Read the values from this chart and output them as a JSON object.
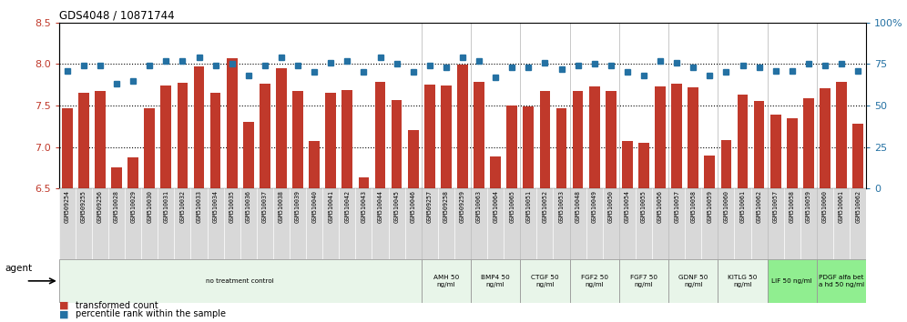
{
  "title": "GDS4048 / 10871744",
  "bar_values": [
    7.47,
    7.65,
    7.67,
    6.75,
    6.87,
    7.47,
    7.74,
    7.77,
    7.97,
    7.65,
    8.07,
    7.3,
    7.76,
    7.95,
    7.67,
    7.07,
    7.65,
    7.69,
    6.63,
    7.79,
    7.56,
    7.2,
    7.75,
    7.74,
    7.99,
    7.79,
    6.88,
    7.5,
    7.49,
    7.68,
    7.47,
    7.68,
    7.73,
    7.67,
    7.07,
    7.05,
    7.73,
    7.76,
    7.72,
    6.9,
    7.08,
    7.63,
    7.55,
    7.39,
    7.35,
    7.59,
    7.71,
    7.79,
    7.28
  ],
  "dot_values": [
    71,
    74,
    74,
    63,
    65,
    74,
    77,
    77,
    79,
    74,
    75,
    68,
    74,
    79,
    74,
    70,
    76,
    77,
    70,
    79,
    75,
    70,
    74,
    73,
    79,
    77,
    67,
    73,
    73,
    76,
    72,
    74,
    75,
    74,
    70,
    68,
    77,
    76,
    73,
    68,
    70,
    74,
    73,
    71,
    71,
    75,
    74,
    75,
    71
  ],
  "xlabels": [
    "GSM509254",
    "GSM509255",
    "GSM509256",
    "GSM510028",
    "GSM510029",
    "GSM510030",
    "GSM510031",
    "GSM510032",
    "GSM510033",
    "GSM510034",
    "GSM510035",
    "GSM510036",
    "GSM510037",
    "GSM510038",
    "GSM510039",
    "GSM510040",
    "GSM510041",
    "GSM510042",
    "GSM510043",
    "GSM510044",
    "GSM510045",
    "GSM510046",
    "GSM509257",
    "GSM509258",
    "GSM509259",
    "GSM510063",
    "GSM510064",
    "GSM510065",
    "GSM510051",
    "GSM510052",
    "GSM510053",
    "GSM510048",
    "GSM510049",
    "GSM510050",
    "GSM510054",
    "GSM510055",
    "GSM510056",
    "GSM510057",
    "GSM510058",
    "GSM510059",
    "GSM510060",
    "GSM510061",
    "GSM510062",
    "GSM510057",
    "GSM510058",
    "GSM510059",
    "GSM510060",
    "GSM510061",
    "GSM510062"
  ],
  "ylim": [
    6.5,
    8.5
  ],
  "yticks": [
    6.5,
    7.0,
    7.5,
    8.0,
    8.5
  ],
  "y2ticks": [
    0,
    25,
    50,
    75,
    100
  ],
  "bar_color": "#C0392B",
  "dot_color": "#2471A3",
  "agent_groups": [
    {
      "label": "no treatment control",
      "start": 0,
      "end": 22,
      "color": "#E8F5E9"
    },
    {
      "label": "AMH 50\nng/ml",
      "start": 22,
      "end": 25,
      "color": "#E8F5E9"
    },
    {
      "label": "BMP4 50\nng/ml",
      "start": 25,
      "end": 28,
      "color": "#E8F5E9"
    },
    {
      "label": "CTGF 50\nng/ml",
      "start": 28,
      "end": 31,
      "color": "#E8F5E9"
    },
    {
      "label": "FGF2 50\nng/ml",
      "start": 31,
      "end": 34,
      "color": "#E8F5E9"
    },
    {
      "label": "FGF7 50\nng/ml",
      "start": 34,
      "end": 37,
      "color": "#E8F5E9"
    },
    {
      "label": "GDNF 50\nng/ml",
      "start": 37,
      "end": 40,
      "color": "#E8F5E9"
    },
    {
      "label": "KITLG 50\nng/ml",
      "start": 40,
      "end": 43,
      "color": "#E8F5E9"
    },
    {
      "label": "LIF 50 ng/ml",
      "start": 43,
      "end": 46,
      "color": "#90EE90"
    },
    {
      "label": "PDGF alfa bet\na hd 50 ng/ml",
      "start": 46,
      "end": 49,
      "color": "#90EE90"
    }
  ],
  "legend_bar_label": "transformed count",
  "legend_dot_label": "percentile rank within the sample",
  "agent_label": "agent",
  "grid_yticks": [
    7.0,
    7.5,
    8.0
  ],
  "group_boundaries": [
    22,
    25,
    28,
    31,
    34,
    37,
    40,
    43,
    46
  ]
}
